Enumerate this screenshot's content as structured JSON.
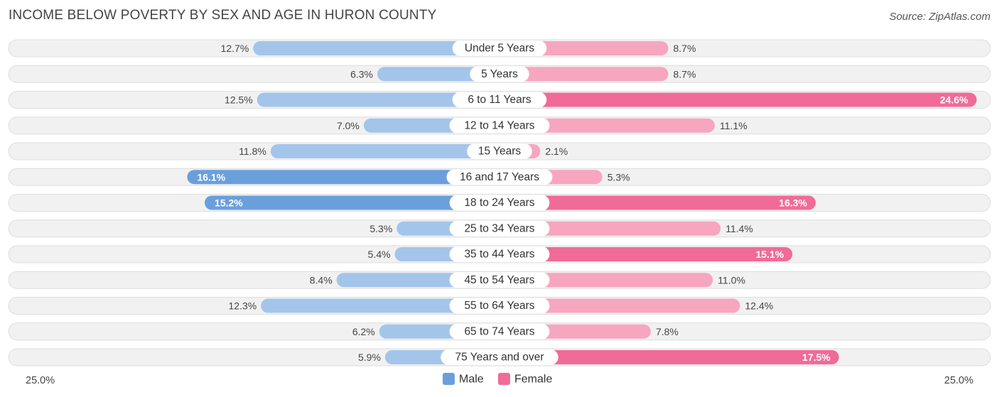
{
  "chart_data": {
    "type": "bar",
    "orientation": "horizontal-diverging",
    "title": "INCOME BELOW POVERTY BY SEX AND AGE IN HURON COUNTY",
    "source": "Source: ZipAtlas.com",
    "categories": [
      "Under 5 Years",
      "5 Years",
      "6 to 11 Years",
      "12 to 14 Years",
      "15 Years",
      "16 and 17 Years",
      "18 to 24 Years",
      "25 to 34 Years",
      "35 to 44 Years",
      "45 to 54 Years",
      "55 to 64 Years",
      "65 to 74 Years",
      "75 Years and over"
    ],
    "series": [
      {
        "name": "Male",
        "values": [
          12.7,
          6.3,
          12.5,
          7.0,
          11.8,
          16.1,
          15.2,
          5.3,
          5.4,
          8.4,
          12.3,
          6.2,
          5.9
        ],
        "labels": [
          "12.7%",
          "6.3%",
          "12.5%",
          "7.0%",
          "11.8%",
          "16.1%",
          "15.2%",
          "5.3%",
          "5.4%",
          "8.4%",
          "12.3%",
          "6.2%",
          "5.9%"
        ]
      },
      {
        "name": "Female",
        "values": [
          8.7,
          8.7,
          24.6,
          11.1,
          2.1,
          5.3,
          16.3,
          11.4,
          15.1,
          11.0,
          12.4,
          7.8,
          17.5
        ],
        "labels": [
          "8.7%",
          "8.7%",
          "24.6%",
          "11.1%",
          "2.1%",
          "5.3%",
          "16.3%",
          "11.4%",
          "15.1%",
          "11.0%",
          "12.4%",
          "7.8%",
          "17.5%"
        ]
      }
    ],
    "axis_max": 25.0,
    "axis_left_label": "25.0%",
    "axis_right_label": "25.0%",
    "legend": [
      "Male",
      "Female"
    ],
    "legend_position": "bottom-center"
  },
  "colors": {
    "male_light": "#a4c5ea",
    "male_strong": "#6a9fdc",
    "female_light": "#f7a6c0",
    "female_strong": "#f06b97"
  }
}
